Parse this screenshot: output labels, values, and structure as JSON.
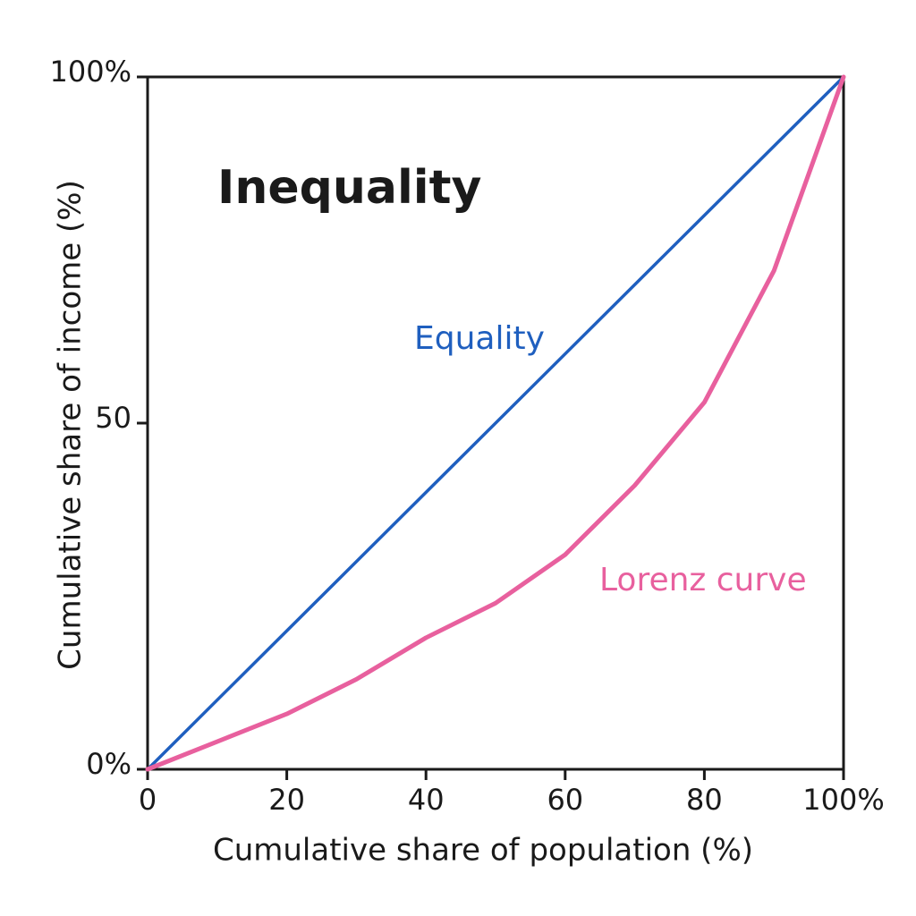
{
  "chart_data": {
    "type": "line",
    "title": "Inequality",
    "x_label": "Cumulative share of population (%)",
    "y_label": "Cumulative share of income (%)",
    "xlim": [
      0,
      100
    ],
    "ylim": [
      0,
      100
    ],
    "xticks": [
      0,
      20,
      40,
      60,
      80,
      {
        "value": 100,
        "label": "100%"
      }
    ],
    "yticks": [
      {
        "value": 0,
        "label": "0%"
      },
      50,
      {
        "value": 100,
        "label": "100%"
      }
    ],
    "series": [
      {
        "name": "Equality",
        "color": "#1f5fbf",
        "x": [
          0,
          100
        ],
        "values": [
          0,
          100
        ]
      },
      {
        "name": "Lorenz curve",
        "color": "#e8609e",
        "x": [
          0,
          10,
          20,
          30,
          40,
          50,
          60,
          70,
          80,
          90,
          100
        ],
        "values": [
          0,
          4,
          8,
          13,
          19,
          24,
          31,
          41,
          53,
          72,
          100
        ]
      }
    ]
  }
}
